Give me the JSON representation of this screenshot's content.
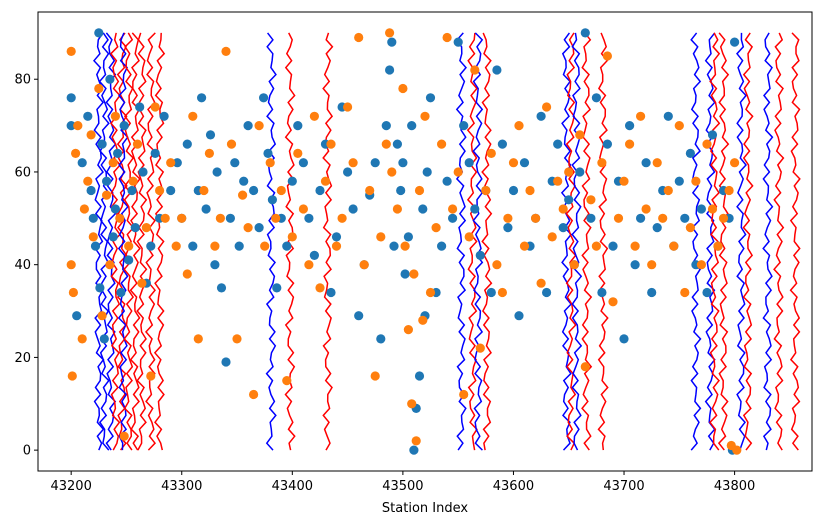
{
  "chart_data": {
    "type": "scatter",
    "title": "",
    "xlabel": "Station Index",
    "ylabel": "",
    "xlim": [
      43170,
      43870
    ],
    "ylim": [
      -4.5,
      94.5
    ],
    "xticks": [
      43200,
      43300,
      43400,
      43500,
      43600,
      43700,
      43800
    ],
    "yticks": [
      0,
      20,
      40,
      60,
      80
    ],
    "grid": false,
    "legend": "none",
    "colors": {
      "blue_dots": "#1f77b4",
      "orange_dots": "#ff7f0e",
      "blue_lines": "#0000ff",
      "red_lines": "#ff0000"
    },
    "wiggle_traces": [
      {
        "color": "blue",
        "x0": 43225
      },
      {
        "color": "blue",
        "x0": 43230
      },
      {
        "color": "blue",
        "x0": 43236
      },
      {
        "color": "red",
        "x0": 43240
      },
      {
        "color": "red",
        "x0": 43246
      },
      {
        "color": "blue",
        "x0": 43247
      },
      {
        "color": "red",
        "x0": 43252
      },
      {
        "color": "red",
        "x0": 43258
      },
      {
        "color": "red",
        "x0": 43264
      },
      {
        "color": "red",
        "x0": 43272
      },
      {
        "color": "red",
        "x0": 43280
      },
      {
        "color": "blue",
        "x0": 43381
      },
      {
        "color": "red",
        "x0": 43398
      },
      {
        "color": "red",
        "x0": 43432
      },
      {
        "color": "blue",
        "x0": 43553
      },
      {
        "color": "red",
        "x0": 43563
      },
      {
        "color": "blue",
        "x0": 43568
      },
      {
        "color": "red",
        "x0": 43576
      },
      {
        "color": "blue",
        "x0": 43648
      },
      {
        "color": "red",
        "x0": 43652
      },
      {
        "color": "blue",
        "x0": 43657
      },
      {
        "color": "red",
        "x0": 43666
      },
      {
        "color": "red",
        "x0": 43681
      },
      {
        "color": "blue",
        "x0": 43765
      },
      {
        "color": "blue",
        "x0": 43778
      },
      {
        "color": "red",
        "x0": 43782
      },
      {
        "color": "red",
        "x0": 43790
      },
      {
        "color": "blue",
        "x0": 43806
      },
      {
        "color": "red",
        "x0": 43812
      },
      {
        "color": "blue",
        "x0": 43830
      },
      {
        "color": "red",
        "x0": 43840
      },
      {
        "color": "red",
        "x0": 43855
      }
    ],
    "scatter_series": [
      {
        "color": "blue",
        "points": [
          [
            43200,
            76
          ],
          [
            43200,
            70
          ],
          [
            43205,
            29
          ],
          [
            43210,
            62
          ],
          [
            43215,
            72
          ],
          [
            43218,
            56
          ],
          [
            43220,
            50
          ],
          [
            43222,
            44
          ],
          [
            43225,
            90
          ],
          [
            43226,
            35
          ],
          [
            43228,
            66
          ],
          [
            43230,
            24
          ],
          [
            43232,
            58
          ],
          [
            43235,
            80
          ],
          [
            43238,
            46
          ],
          [
            43240,
            52
          ],
          [
            43242,
            64
          ],
          [
            43245,
            34
          ],
          [
            43248,
            70
          ],
          [
            43252,
            41
          ],
          [
            43255,
            56
          ],
          [
            43258,
            48
          ],
          [
            43262,
            74
          ],
          [
            43265,
            60
          ],
          [
            43268,
            36
          ],
          [
            43272,
            44
          ],
          [
            43276,
            64
          ],
          [
            43280,
            50
          ],
          [
            43284,
            72
          ],
          [
            43290,
            56
          ],
          [
            43296,
            62
          ],
          [
            43300,
            50
          ],
          [
            43305,
            66
          ],
          [
            43310,
            44
          ],
          [
            43315,
            56
          ],
          [
            43318,
            76
          ],
          [
            43322,
            52
          ],
          [
            43326,
            68
          ],
          [
            43330,
            40
          ],
          [
            43332,
            60
          ],
          [
            43336,
            35
          ],
          [
            43340,
            19
          ],
          [
            43344,
            50
          ],
          [
            43348,
            62
          ],
          [
            43352,
            44
          ],
          [
            43356,
            58
          ],
          [
            43360,
            70
          ],
          [
            43365,
            56
          ],
          [
            43370,
            48
          ],
          [
            43374,
            76
          ],
          [
            43378,
            64
          ],
          [
            43382,
            54
          ],
          [
            43386,
            35
          ],
          [
            43390,
            50
          ],
          [
            43395,
            44
          ],
          [
            43400,
            58
          ],
          [
            43405,
            70
          ],
          [
            43410,
            62
          ],
          [
            43415,
            50
          ],
          [
            43420,
            42
          ],
          [
            43425,
            56
          ],
          [
            43430,
            66
          ],
          [
            43435,
            34
          ],
          [
            43440,
            46
          ],
          [
            43445,
            74
          ],
          [
            43450,
            60
          ],
          [
            43455,
            52
          ],
          [
            43460,
            29
          ],
          [
            43465,
            40
          ],
          [
            43470,
            55
          ],
          [
            43475,
            62
          ],
          [
            43480,
            24
          ],
          [
            43485,
            70
          ],
          [
            43488,
            82
          ],
          [
            43490,
            88
          ],
          [
            43492,
            44
          ],
          [
            43495,
            66
          ],
          [
            43498,
            56
          ],
          [
            43500,
            62
          ],
          [
            43502,
            38
          ],
          [
            43505,
            46
          ],
          [
            43508,
            70
          ],
          [
            43510,
            0
          ],
          [
            43512,
            9
          ],
          [
            43515,
            16
          ],
          [
            43518,
            52
          ],
          [
            43520,
            29
          ],
          [
            43522,
            60
          ],
          [
            43525,
            76
          ],
          [
            43530,
            34
          ],
          [
            43535,
            44
          ],
          [
            43540,
            58
          ],
          [
            43545,
            50
          ],
          [
            43550,
            88
          ],
          [
            43555,
            70
          ],
          [
            43560,
            62
          ],
          [
            43565,
            52
          ],
          [
            43570,
            42
          ],
          [
            43575,
            56
          ],
          [
            43580,
            34
          ],
          [
            43585,
            82
          ],
          [
            43590,
            66
          ],
          [
            43595,
            48
          ],
          [
            43600,
            56
          ],
          [
            43605,
            29
          ],
          [
            43610,
            62
          ],
          [
            43615,
            44
          ],
          [
            43620,
            50
          ],
          [
            43625,
            72
          ],
          [
            43630,
            34
          ],
          [
            43635,
            58
          ],
          [
            43640,
            66
          ],
          [
            43645,
            48
          ],
          [
            43650,
            54
          ],
          [
            43655,
            40
          ],
          [
            43660,
            60
          ],
          [
            43665,
            90
          ],
          [
            43670,
            50
          ],
          [
            43675,
            76
          ],
          [
            43680,
            34
          ],
          [
            43685,
            66
          ],
          [
            43690,
            44
          ],
          [
            43695,
            58
          ],
          [
            43700,
            24
          ],
          [
            43705,
            70
          ],
          [
            43710,
            40
          ],
          [
            43715,
            50
          ],
          [
            43720,
            62
          ],
          [
            43725,
            34
          ],
          [
            43730,
            48
          ],
          [
            43735,
            56
          ],
          [
            43740,
            72
          ],
          [
            43745,
            44
          ],
          [
            43750,
            58
          ],
          [
            43755,
            50
          ],
          [
            43760,
            64
          ],
          [
            43765,
            40
          ],
          [
            43770,
            52
          ],
          [
            43775,
            34
          ],
          [
            43780,
            68
          ],
          [
            43785,
            44
          ],
          [
            43790,
            56
          ],
          [
            43795,
            50
          ],
          [
            43798,
            0
          ],
          [
            43800,
            88
          ]
        ]
      },
      {
        "color": "orange",
        "points": [
          [
            43200,
            86
          ],
          [
            43200,
            40
          ],
          [
            43201,
            16
          ],
          [
            43202,
            34
          ],
          [
            43204,
            64
          ],
          [
            43206,
            70
          ],
          [
            43210,
            24
          ],
          [
            43212,
            52
          ],
          [
            43215,
            58
          ],
          [
            43218,
            68
          ],
          [
            43220,
            46
          ],
          [
            43225,
            78
          ],
          [
            43228,
            29
          ],
          [
            43232,
            55
          ],
          [
            43235,
            40
          ],
          [
            43238,
            62
          ],
          [
            43240,
            72
          ],
          [
            43244,
            50
          ],
          [
            43248,
            3
          ],
          [
            43252,
            44
          ],
          [
            43256,
            58
          ],
          [
            43260,
            66
          ],
          [
            43264,
            36
          ],
          [
            43268,
            48
          ],
          [
            43272,
            16
          ],
          [
            43276,
            74
          ],
          [
            43280,
            56
          ],
          [
            43285,
            50
          ],
          [
            43290,
            62
          ],
          [
            43295,
            44
          ],
          [
            43300,
            50
          ],
          [
            43305,
            38
          ],
          [
            43310,
            72
          ],
          [
            43315,
            24
          ],
          [
            43320,
            56
          ],
          [
            43325,
            64
          ],
          [
            43330,
            44
          ],
          [
            43335,
            50
          ],
          [
            43340,
            86
          ],
          [
            43345,
            66
          ],
          [
            43350,
            24
          ],
          [
            43355,
            55
          ],
          [
            43360,
            48
          ],
          [
            43365,
            12
          ],
          [
            43370,
            70
          ],
          [
            43375,
            44
          ],
          [
            43380,
            62
          ],
          [
            43385,
            50
          ],
          [
            43390,
            56
          ],
          [
            43395,
            15
          ],
          [
            43400,
            46
          ],
          [
            43405,
            64
          ],
          [
            43410,
            52
          ],
          [
            43415,
            40
          ],
          [
            43420,
            72
          ],
          [
            43425,
            35
          ],
          [
            43430,
            58
          ],
          [
            43435,
            66
          ],
          [
            43440,
            44
          ],
          [
            43445,
            50
          ],
          [
            43450,
            74
          ],
          [
            43455,
            62
          ],
          [
            43460,
            89
          ],
          [
            43465,
            40
          ],
          [
            43470,
            56
          ],
          [
            43475,
            16
          ],
          [
            43480,
            46
          ],
          [
            43485,
            66
          ],
          [
            43488,
            90
          ],
          [
            43490,
            60
          ],
          [
            43495,
            52
          ],
          [
            43500,
            78
          ],
          [
            43502,
            44
          ],
          [
            43505,
            26
          ],
          [
            43508,
            10
          ],
          [
            43510,
            38
          ],
          [
            43512,
            2
          ],
          [
            43515,
            56
          ],
          [
            43518,
            28
          ],
          [
            43520,
            72
          ],
          [
            43525,
            34
          ],
          [
            43530,
            48
          ],
          [
            43535,
            66
          ],
          [
            43540,
            89
          ],
          [
            43545,
            52
          ],
          [
            43550,
            60
          ],
          [
            43555,
            12
          ],
          [
            43560,
            46
          ],
          [
            43565,
            82
          ],
          [
            43570,
            22
          ],
          [
            43575,
            56
          ],
          [
            43580,
            64
          ],
          [
            43585,
            40
          ],
          [
            43590,
            34
          ],
          [
            43595,
            50
          ],
          [
            43600,
            62
          ],
          [
            43605,
            70
          ],
          [
            43610,
            44
          ],
          [
            43615,
            56
          ],
          [
            43620,
            50
          ],
          [
            43625,
            36
          ],
          [
            43630,
            74
          ],
          [
            43635,
            46
          ],
          [
            43640,
            58
          ],
          [
            43645,
            52
          ],
          [
            43650,
            60
          ],
          [
            43655,
            40
          ],
          [
            43660,
            68
          ],
          [
            43665,
            18
          ],
          [
            43670,
            54
          ],
          [
            43675,
            44
          ],
          [
            43680,
            62
          ],
          [
            43685,
            85
          ],
          [
            43690,
            32
          ],
          [
            43695,
            50
          ],
          [
            43700,
            58
          ],
          [
            43705,
            66
          ],
          [
            43710,
            44
          ],
          [
            43715,
            72
          ],
          [
            43720,
            52
          ],
          [
            43725,
            40
          ],
          [
            43730,
            62
          ],
          [
            43735,
            50
          ],
          [
            43740,
            56
          ],
          [
            43745,
            44
          ],
          [
            43750,
            70
          ],
          [
            43755,
            34
          ],
          [
            43760,
            48
          ],
          [
            43765,
            58
          ],
          [
            43770,
            40
          ],
          [
            43775,
            66
          ],
          [
            43780,
            52
          ],
          [
            43785,
            44
          ],
          [
            43790,
            50
          ],
          [
            43795,
            56
          ],
          [
            43800,
            62
          ],
          [
            43797,
            1
          ],
          [
            43802,
            0
          ]
        ]
      }
    ]
  }
}
